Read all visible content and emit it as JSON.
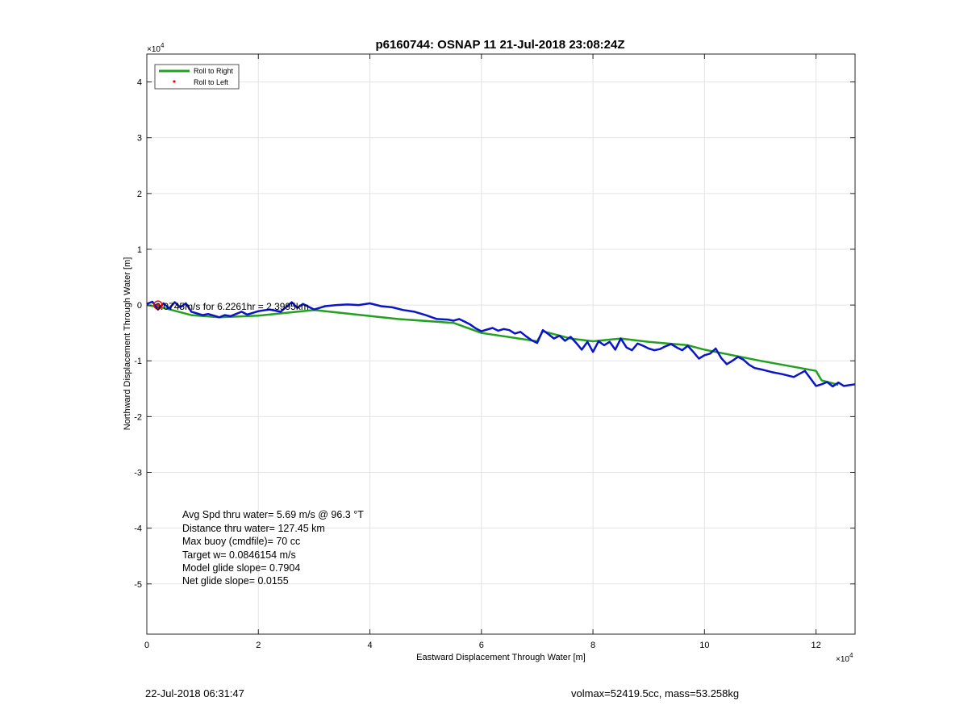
{
  "chart_data": {
    "type": "line",
    "title": "p6160744: OSNAP 11 21-Jul-2018 23:08:24Z",
    "xlabel": "Eastward Displacement Through Water [m]",
    "ylabel": "Northward Displacement Through Water [m]",
    "xlim": [
      0,
      127000
    ],
    "ylim": [
      -59000,
      45000
    ],
    "x_exponent_label": "×10",
    "x_exponent_sup": "4",
    "y_exponent_label": "×10",
    "y_exponent_sup": "4",
    "grid": true,
    "legend_placement": "top-left",
    "xticks": [
      {
        "value": 0,
        "label": "0"
      },
      {
        "value": 20000,
        "label": "2"
      },
      {
        "value": 40000,
        "label": "4"
      },
      {
        "value": 60000,
        "label": "6"
      },
      {
        "value": 80000,
        "label": "8"
      },
      {
        "value": 100000,
        "label": "10"
      },
      {
        "value": 120000,
        "label": "12"
      }
    ],
    "yticks": [
      {
        "value": 40000,
        "label": "4"
      },
      {
        "value": 30000,
        "label": "3"
      },
      {
        "value": 20000,
        "label": "2"
      },
      {
        "value": 10000,
        "label": "1"
      },
      {
        "value": 0,
        "label": "0"
      },
      {
        "value": -10000,
        "label": "-1"
      },
      {
        "value": -20000,
        "label": "-2"
      },
      {
        "value": -30000,
        "label": "-3"
      },
      {
        "value": -40000,
        "label": "-4"
      },
      {
        "value": -50000,
        "label": "-5"
      }
    ],
    "series": [
      {
        "name": "Roll to Right",
        "color": "#22a020",
        "x": [
          0,
          3000,
          8000,
          13000,
          20000,
          30000,
          45000,
          55000,
          60000,
          70000,
          71000,
          76000,
          80000,
          85000,
          90000,
          97000,
          100000,
          110000,
          120000,
          121000,
          124000
        ],
        "y": [
          0,
          -500,
          -1800,
          -2200,
          -1900,
          -900,
          -2500,
          -3200,
          -5000,
          -6500,
          -4700,
          -6000,
          -6500,
          -6000,
          -6600,
          -7200,
          -8000,
          -10000,
          -11800,
          -13500,
          -14300
        ]
      },
      {
        "name": "Roll to Left",
        "color": "#ff0000",
        "x": [
          2000
        ],
        "y": [
          0
        ]
      },
      {
        "color": "#0a14c8",
        "x": [
          0,
          1000,
          2000,
          3000,
          4000,
          5000,
          6000,
          7000,
          8000,
          9000,
          10000,
          11000,
          12000,
          13000,
          14000,
          15000,
          16000,
          17000,
          18000,
          20000,
          22000,
          24000,
          26000,
          27000,
          28000,
          29000,
          30000,
          31000,
          32000,
          34000,
          36000,
          38000,
          40000,
          42000,
          44000,
          46000,
          48000,
          50000,
          52000,
          54000,
          55000,
          56000,
          57000,
          58000,
          59000,
          60000,
          61000,
          62000,
          63000,
          64000,
          65000,
          66000,
          67000,
          68000,
          69000,
          70000,
          71000,
          72000,
          73000,
          74000,
          75000,
          76000,
          77000,
          78000,
          79000,
          80000,
          81000,
          82000,
          83000,
          84000,
          85000,
          86000,
          87000,
          88000,
          89000,
          90000,
          91000,
          92000,
          93000,
          94000,
          95000,
          96000,
          97000,
          98000,
          99000,
          100000,
          101000,
          102000,
          103000,
          104000,
          105000,
          106000,
          107000,
          108000,
          109000,
          110000,
          112000,
          114000,
          116000,
          118000,
          120000,
          121000,
          122000,
          123000,
          124000,
          125000,
          127000
        ],
        "y": [
          200,
          600,
          -800,
          300,
          -600,
          500,
          -400,
          300,
          -1200,
          -1500,
          -1800,
          -1600,
          -1900,
          -2200,
          -1800,
          -2000,
          -1600,
          -1200,
          -1700,
          -1100,
          -800,
          -1200,
          500,
          -500,
          200,
          -300,
          -800,
          -500,
          -200,
          0,
          100,
          0,
          300,
          -200,
          -400,
          -900,
          -1200,
          -1800,
          -2500,
          -2600,
          -2800,
          -2500,
          -3000,
          -3500,
          -4200,
          -4700,
          -4400,
          -4100,
          -4600,
          -4300,
          -4500,
          -5100,
          -4800,
          -5600,
          -6300,
          -6800,
          -4500,
          -5200,
          -6000,
          -5500,
          -6400,
          -5700,
          -6800,
          -8000,
          -6600,
          -8400,
          -6500,
          -7200,
          -6600,
          -8000,
          -6000,
          -7600,
          -8100,
          -6900,
          -7300,
          -7800,
          -8100,
          -7900,
          -7400,
          -7000,
          -7600,
          -8100,
          -7300,
          -8400,
          -9600,
          -9000,
          -8700,
          -7800,
          -9500,
          -10600,
          -10000,
          -9300,
          -9800,
          -10700,
          -11300,
          -11500,
          -12000,
          -12400,
          -12900,
          -11800,
          -14500,
          -14200,
          -13800,
          -14600,
          -13900,
          -14500,
          -14200
        ]
      }
    ],
    "legend": [
      "Roll to Right",
      "Roll to Left"
    ],
    "overlay_text": "0.0745m/s for 6.2261hr = 2.3995km",
    "overlay_text_pos": {
      "x": 1500,
      "y": -300
    },
    "stats": [
      "Avg Spd thru water=  5.69 m/s @  96.3 °T",
      "Distance thru water= 127.45 km",
      "Max buoy (cmdfile)= 70 cc",
      "Target w= 0.0846154 m/s",
      "Model glide slope= 0.7904",
      "Net glide slope= 0.0155"
    ]
  },
  "footer": {
    "left": "22-Jul-2018 06:31:47",
    "right": "volmax=52419.5cc, mass=53.258kg"
  }
}
